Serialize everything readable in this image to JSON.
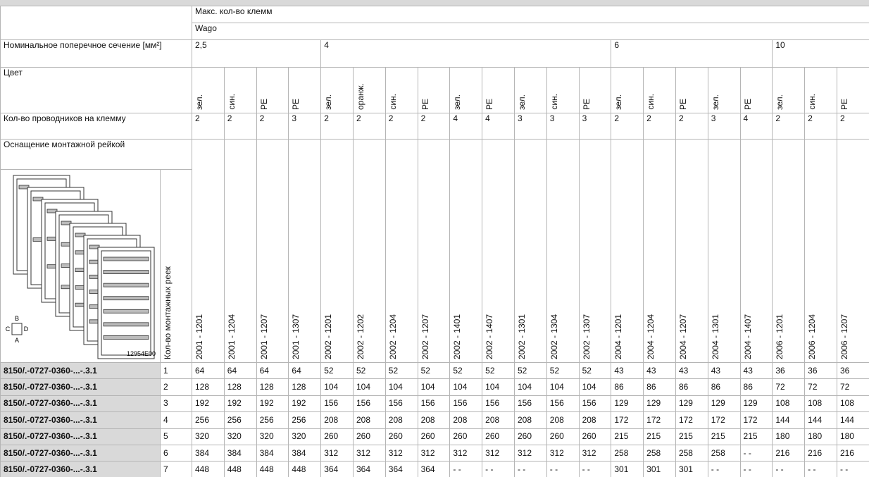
{
  "header": {
    "max_terminals": "Макс. кол-во клемм",
    "brand": "Wago",
    "section_label": "Номинальное поперечное сечение [мм²]",
    "color_label": "Цвет",
    "conductors_label": "Кол-во проводников на клемму",
    "rail_label": "Оснащение монтажной рейкой",
    "rails_count_label": "Кол-во монтажных реек"
  },
  "figure": {
    "b": "B",
    "c": "C",
    "d": "D",
    "a": "A",
    "code": "12954E00"
  },
  "sections": [
    {
      "label": "2,5",
      "columns": [
        {
          "color": "зел.",
          "conductors": 2,
          "part": "2001 - 1201"
        },
        {
          "color": "син.",
          "conductors": 2,
          "part": "2001 - 1204"
        },
        {
          "color": "PE",
          "conductors": 2,
          "part": "2001 - 1207"
        },
        {
          "color": "PE",
          "conductors": 3,
          "part": "2001 - 1307"
        }
      ]
    },
    {
      "label": "4",
      "columns": [
        {
          "color": "зел.",
          "conductors": 2,
          "part": "2002 - 1201"
        },
        {
          "color": "оранж.",
          "conductors": 2,
          "part": "2002 - 1202"
        },
        {
          "color": "син.",
          "conductors": 2,
          "part": "2002 - 1204"
        },
        {
          "color": "PE",
          "conductors": 2,
          "part": "2002 - 1207"
        },
        {
          "color": "зел.",
          "conductors": 4,
          "part": "2002 - 1401"
        },
        {
          "color": "PE",
          "conductors": 4,
          "part": "2002 - 1407"
        },
        {
          "color": "зел.",
          "conductors": 3,
          "part": "2002 - 1301"
        },
        {
          "color": "син.",
          "conductors": 3,
          "part": "2002 - 1304"
        },
        {
          "color": "PE",
          "conductors": 3,
          "part": "2002 - 1307"
        }
      ]
    },
    {
      "label": "6",
      "columns": [
        {
          "color": "зел.",
          "conductors": 2,
          "part": "2004 - 1201"
        },
        {
          "color": "син.",
          "conductors": 2,
          "part": "2004 - 1204"
        },
        {
          "color": "PE",
          "conductors": 2,
          "part": "2004 - 1207"
        },
        {
          "color": "зел.",
          "conductors": 3,
          "part": "2004 - 1301"
        },
        {
          "color": "PE",
          "conductors": 4,
          "part": "2004 - 1407"
        }
      ]
    },
    {
      "label": "10",
      "columns": [
        {
          "color": "зел.",
          "conductors": 2,
          "part": "2006 - 1201"
        },
        {
          "color": "син.",
          "conductors": 2,
          "part": "2006 - 1204"
        },
        {
          "color": "PE",
          "conductors": 2,
          "part": "2006 - 1207"
        }
      ]
    }
  ],
  "rows": [
    {
      "article": "8150/.-0727-0360-...-.3.1",
      "rails": 1,
      "values": [
        64,
        64,
        64,
        64,
        52,
        52,
        52,
        52,
        52,
        52,
        52,
        52,
        52,
        43,
        43,
        43,
        43,
        43,
        36,
        36,
        36
      ]
    },
    {
      "article": "8150/.-0727-0360-...-.3.1",
      "rails": 2,
      "values": [
        128,
        128,
        128,
        128,
        104,
        104,
        104,
        104,
        104,
        104,
        104,
        104,
        104,
        86,
        86,
        86,
        86,
        86,
        72,
        72,
        72
      ]
    },
    {
      "article": "8150/.-0727-0360-...-.3.1",
      "rails": 3,
      "values": [
        192,
        192,
        192,
        192,
        156,
        156,
        156,
        156,
        156,
        156,
        156,
        156,
        156,
        129,
        129,
        129,
        129,
        129,
        108,
        108,
        108
      ]
    },
    {
      "article": "8150/.-0727-0360-...-.3.1",
      "rails": 4,
      "values": [
        256,
        256,
        256,
        256,
        208,
        208,
        208,
        208,
        208,
        208,
        208,
        208,
        208,
        172,
        172,
        172,
        172,
        172,
        144,
        144,
        144
      ]
    },
    {
      "article": "8150/.-0727-0360-...-.3.1",
      "rails": 5,
      "values": [
        320,
        320,
        320,
        320,
        260,
        260,
        260,
        260,
        260,
        260,
        260,
        260,
        260,
        215,
        215,
        215,
        215,
        215,
        180,
        180,
        180
      ]
    },
    {
      "article": "8150/.-0727-0360-...-.3.1",
      "rails": 6,
      "values": [
        384,
        384,
        384,
        384,
        312,
        312,
        312,
        312,
        312,
        312,
        312,
        312,
        312,
        258,
        258,
        258,
        258,
        "- -",
        216,
        216,
        216
      ]
    },
    {
      "article": "8150/.-0727-0360-...-.3.1",
      "rails": 7,
      "values": [
        448,
        448,
        448,
        448,
        364,
        364,
        364,
        364,
        "- -",
        "- -",
        "- -",
        "- -",
        "- -",
        301,
        301,
        301,
        "- -",
        "- -",
        "- -",
        "- -",
        "- -"
      ]
    }
  ]
}
